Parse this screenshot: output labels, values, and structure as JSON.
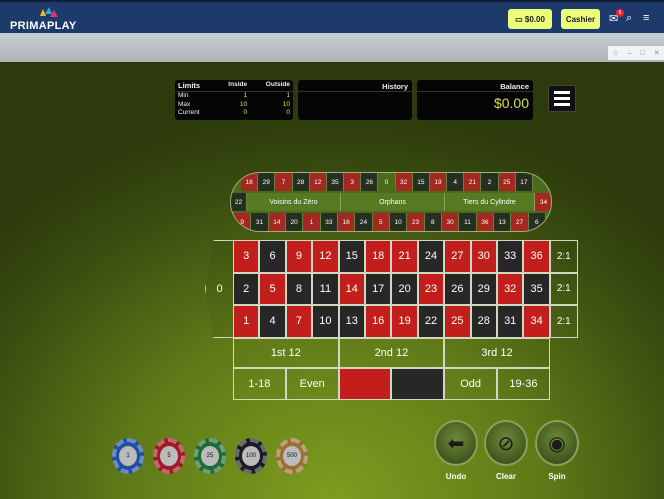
{
  "header": {
    "logo": "PRIMAPLAY",
    "wallet": "$0.00",
    "cashier": "Cashier",
    "notif_count": "5"
  },
  "limits": {
    "title": "Limits",
    "inside": "Inside",
    "outside": "Outside",
    "rows": [
      {
        "label": "Min",
        "inside": "1",
        "outside": "1"
      },
      {
        "label": "Max",
        "inside": "10",
        "outside": "10"
      },
      {
        "label": "Current",
        "inside": "0",
        "outside": "0"
      }
    ]
  },
  "history": {
    "title": "History"
  },
  "balance": {
    "title": "Balance",
    "value": "$0.00"
  },
  "racetrack": {
    "top": [
      [
        "18",
        "r"
      ],
      [
        "29",
        "b"
      ],
      [
        "7",
        "r"
      ],
      [
        "28",
        "b"
      ],
      [
        "12",
        "r"
      ],
      [
        "35",
        "b"
      ],
      [
        "3",
        "r"
      ],
      [
        "26",
        "b"
      ],
      [
        "0",
        "g"
      ],
      [
        "32",
        "r"
      ],
      [
        "15",
        "b"
      ],
      [
        "19",
        "r"
      ],
      [
        "4",
        "b"
      ],
      [
        "21",
        "r"
      ],
      [
        "2",
        "b"
      ],
      [
        "25",
        "r"
      ],
      [
        "17",
        "b"
      ]
    ],
    "bottom": [
      [
        "9",
        "r"
      ],
      [
        "31",
        "b"
      ],
      [
        "14",
        "r"
      ],
      [
        "20",
        "b"
      ],
      [
        "1",
        "r"
      ],
      [
        "33",
        "b"
      ],
      [
        "16",
        "r"
      ],
      [
        "24",
        "b"
      ],
      [
        "5",
        "r"
      ],
      [
        "10",
        "b"
      ],
      [
        "23",
        "r"
      ],
      [
        "8",
        "b"
      ],
      [
        "30",
        "r"
      ],
      [
        "11",
        "b"
      ],
      [
        "36",
        "r"
      ],
      [
        "13",
        "b"
      ],
      [
        "27",
        "r"
      ],
      [
        "6",
        "b"
      ]
    ],
    "left": "22",
    "right": "34",
    "sections": [
      "Voisins du Zéro",
      "Orphans",
      "Tiers du Cylindre"
    ]
  },
  "table": {
    "zero": "0",
    "column_bet": "2:1",
    "rows": [
      [
        3,
        6,
        9,
        12,
        15,
        18,
        21,
        24,
        27,
        30,
        33,
        36
      ],
      [
        2,
        5,
        8,
        11,
        14,
        17,
        20,
        23,
        26,
        29,
        32,
        35
      ],
      [
        1,
        4,
        7,
        10,
        13,
        16,
        19,
        22,
        25,
        28,
        31,
        34
      ]
    ],
    "reds": [
      1,
      3,
      5,
      7,
      9,
      12,
      14,
      16,
      18,
      19,
      21,
      23,
      25,
      27,
      30,
      32,
      34,
      36
    ],
    "dozens": [
      "1st 12",
      "2nd 12",
      "3rd 12"
    ],
    "even_money": {
      "low": "1-18",
      "even": "Even",
      "odd": "Odd",
      "high": "19-36"
    }
  },
  "chips": [
    {
      "value": "1",
      "color": "#1f4fa0"
    },
    {
      "value": "5",
      "color": "#a01a25"
    },
    {
      "value": "25",
      "color": "#1f6a35"
    },
    {
      "value": "100",
      "color": "#1b1b25"
    },
    {
      "value": "500",
      "color": "#9a7030"
    }
  ],
  "actions": {
    "undo": "Undo",
    "clear": "Clear",
    "spin": "Spin"
  }
}
